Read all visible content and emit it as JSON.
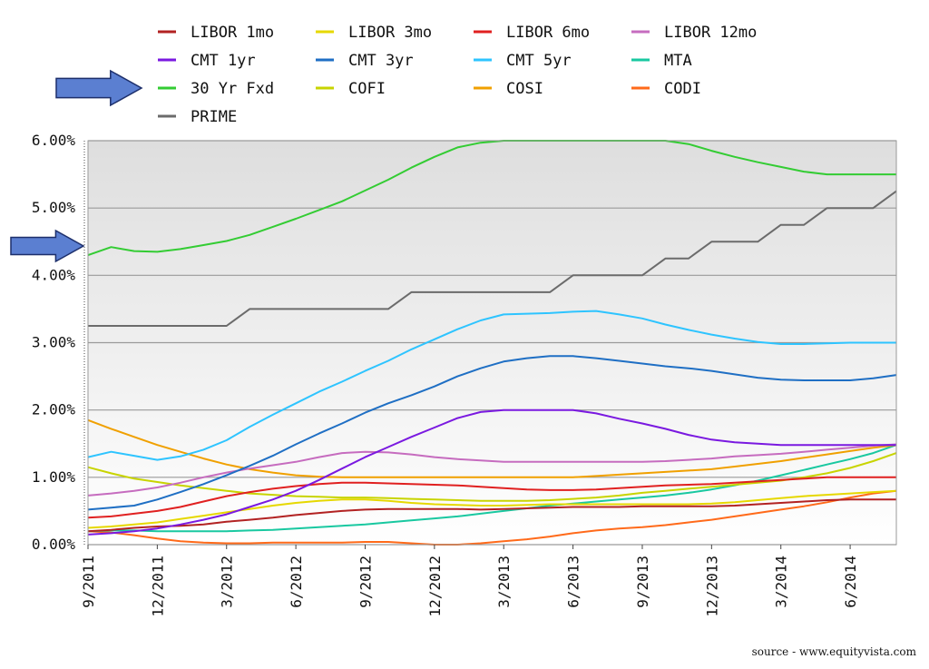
{
  "source": "source - www.equityvista.com",
  "chart_data": {
    "type": "line",
    "title": "",
    "xlabel": "",
    "ylabel": "",
    "ylim": [
      0,
      6
    ],
    "grid": true,
    "legend_placement": "top",
    "y_ticks": [
      "0.00%",
      "1.00%",
      "2.00%",
      "3.00%",
      "4.00%",
      "5.00%",
      "6.00%"
    ],
    "x_ticks": [
      "9/2011",
      "12/2011",
      "3/2012",
      "6/2012",
      "9/2012",
      "12/2012",
      "3/2013",
      "6/2013",
      "9/2013",
      "12/2013",
      "3/2014",
      "6/2014"
    ],
    "x": [
      "9/2011",
      "10/2011",
      "11/2011",
      "12/2011",
      "1/2012",
      "2/2012",
      "3/2012",
      "4/2012",
      "5/2012",
      "6/2012",
      "7/2012",
      "8/2012",
      "9/2012",
      "10/2012",
      "11/2012",
      "12/2012",
      "1/2013",
      "2/2013",
      "3/2013",
      "4/2013",
      "5/2013",
      "6/2013",
      "7/2013",
      "8/2013",
      "9/2013",
      "10/2013",
      "11/2013",
      "12/2013",
      "1/2014",
      "2/2014",
      "3/2014",
      "4/2014",
      "5/2014",
      "6/2014",
      "7/2014",
      "8/2014"
    ],
    "series": [
      {
        "name": "LIBOR 1mo",
        "color": "#b22222",
        "values": [
          0.2,
          0.22,
          0.25,
          0.27,
          0.28,
          0.3,
          0.34,
          0.37,
          0.4,
          0.44,
          0.47,
          0.5,
          0.52,
          0.53,
          0.53,
          0.53,
          0.53,
          0.52,
          0.53,
          0.54,
          0.55,
          0.56,
          0.56,
          0.56,
          0.57,
          0.57,
          0.57,
          0.57,
          0.58,
          0.6,
          0.62,
          0.64,
          0.66,
          0.67,
          0.67,
          0.67
        ]
      },
      {
        "name": "LIBOR 3mo",
        "color": "#e6d800",
        "values": [
          0.25,
          0.27,
          0.3,
          0.33,
          0.38,
          0.43,
          0.48,
          0.53,
          0.58,
          0.62,
          0.65,
          0.67,
          0.67,
          0.65,
          0.62,
          0.6,
          0.59,
          0.58,
          0.58,
          0.59,
          0.6,
          0.6,
          0.6,
          0.6,
          0.6,
          0.6,
          0.6,
          0.61,
          0.63,
          0.66,
          0.69,
          0.72,
          0.74,
          0.76,
          0.78,
          0.8
        ]
      },
      {
        "name": "LIBOR 6mo",
        "color": "#e02020",
        "values": [
          0.4,
          0.42,
          0.46,
          0.5,
          0.56,
          0.64,
          0.72,
          0.78,
          0.83,
          0.87,
          0.9,
          0.92,
          0.92,
          0.91,
          0.9,
          0.89,
          0.88,
          0.86,
          0.84,
          0.82,
          0.81,
          0.81,
          0.82,
          0.84,
          0.86,
          0.88,
          0.89,
          0.9,
          0.92,
          0.94,
          0.96,
          0.98,
          1.0,
          1.0,
          1.0,
          1.0
        ]
      },
      {
        "name": "LIBOR 12mo",
        "color": "#c66cbf",
        "values": [
          0.73,
          0.76,
          0.8,
          0.85,
          0.92,
          1.0,
          1.07,
          1.13,
          1.18,
          1.23,
          1.3,
          1.36,
          1.38,
          1.37,
          1.34,
          1.3,
          1.27,
          1.25,
          1.23,
          1.23,
          1.23,
          1.23,
          1.23,
          1.23,
          1.23,
          1.24,
          1.26,
          1.28,
          1.31,
          1.33,
          1.35,
          1.38,
          1.41,
          1.44,
          1.47,
          1.49
        ]
      },
      {
        "name": "CMT 1yr",
        "color": "#7a19e0",
        "values": [
          0.15,
          0.17,
          0.2,
          0.24,
          0.3,
          0.37,
          0.45,
          0.56,
          0.67,
          0.8,
          0.96,
          1.13,
          1.3,
          1.45,
          1.6,
          1.74,
          1.88,
          1.97,
          2.0,
          2.0,
          2.0,
          2.0,
          1.95,
          1.87,
          1.8,
          1.72,
          1.63,
          1.56,
          1.52,
          1.5,
          1.48,
          1.48,
          1.48,
          1.48,
          1.48,
          1.48
        ]
      },
      {
        "name": "CMT 3yr",
        "color": "#1f6fc4",
        "values": [
          0.52,
          0.55,
          0.58,
          0.67,
          0.78,
          0.9,
          1.03,
          1.17,
          1.32,
          1.49,
          1.65,
          1.8,
          1.96,
          2.1,
          2.22,
          2.35,
          2.5,
          2.62,
          2.72,
          2.77,
          2.8,
          2.8,
          2.77,
          2.73,
          2.69,
          2.65,
          2.62,
          2.58,
          2.53,
          2.48,
          2.45,
          2.44,
          2.44,
          2.44,
          2.47,
          2.52
        ]
      },
      {
        "name": "CMT 5yr",
        "color": "#2ec4ff",
        "values": [
          1.3,
          1.38,
          1.32,
          1.26,
          1.31,
          1.41,
          1.55,
          1.75,
          1.93,
          2.1,
          2.27,
          2.42,
          2.58,
          2.73,
          2.9,
          3.05,
          3.2,
          3.33,
          3.42,
          3.43,
          3.44,
          3.46,
          3.47,
          3.42,
          3.36,
          3.27,
          3.19,
          3.12,
          3.06,
          3.01,
          2.98,
          2.98,
          2.99,
          3.0,
          3.0,
          3.0
        ]
      },
      {
        "name": "MTA",
        "color": "#19c8a0",
        "values": [
          0.2,
          0.21,
          0.21,
          0.2,
          0.2,
          0.2,
          0.2,
          0.21,
          0.22,
          0.24,
          0.26,
          0.28,
          0.3,
          0.33,
          0.36,
          0.39,
          0.42,
          0.46,
          0.5,
          0.54,
          0.58,
          0.61,
          0.64,
          0.67,
          0.7,
          0.73,
          0.77,
          0.82,
          0.88,
          0.95,
          1.03,
          1.11,
          1.19,
          1.27,
          1.36,
          1.48
        ]
      },
      {
        "name": "30 Yr Fxd",
        "color": "#33cc33",
        "values": [
          4.3,
          4.42,
          4.36,
          4.35,
          4.39,
          4.45,
          4.51,
          4.6,
          4.72,
          4.84,
          4.97,
          5.1,
          5.26,
          5.42,
          5.6,
          5.76,
          5.9,
          5.97,
          6.0,
          6.0,
          6.0,
          6.0,
          6.0,
          6.0,
          6.0,
          6.0,
          5.95,
          5.85,
          5.76,
          5.68,
          5.61,
          5.54,
          5.5,
          5.5,
          5.5,
          5.5
        ]
      },
      {
        "name": "COFI",
        "color": "#c8d400",
        "values": [
          1.15,
          1.06,
          0.98,
          0.93,
          0.88,
          0.84,
          0.8,
          0.76,
          0.74,
          0.72,
          0.71,
          0.7,
          0.7,
          0.69,
          0.68,
          0.67,
          0.66,
          0.65,
          0.65,
          0.65,
          0.66,
          0.68,
          0.7,
          0.73,
          0.77,
          0.8,
          0.83,
          0.86,
          0.89,
          0.92,
          0.95,
          1.0,
          1.06,
          1.14,
          1.24,
          1.36
        ]
      },
      {
        "name": "COSI",
        "color": "#f0a000",
        "values": [
          1.85,
          1.72,
          1.6,
          1.48,
          1.38,
          1.28,
          1.19,
          1.12,
          1.07,
          1.03,
          1.01,
          1.0,
          1.0,
          1.0,
          1.0,
          1.0,
          1.0,
          1.0,
          1.0,
          1.0,
          1.0,
          1.0,
          1.02,
          1.04,
          1.06,
          1.08,
          1.1,
          1.12,
          1.16,
          1.2,
          1.24,
          1.29,
          1.34,
          1.39,
          1.44,
          1.48
        ]
      },
      {
        "name": "CODI",
        "color": "#ff6a1a",
        "values": [
          0.2,
          0.18,
          0.14,
          0.09,
          0.05,
          0.03,
          0.02,
          0.02,
          0.03,
          0.03,
          0.03,
          0.03,
          0.04,
          0.04,
          0.02,
          0.0,
          0.0,
          0.02,
          0.05,
          0.08,
          0.12,
          0.17,
          0.21,
          0.24,
          0.26,
          0.29,
          0.33,
          0.37,
          0.42,
          0.47,
          0.52,
          0.57,
          0.63,
          0.7,
          0.76,
          0.8
        ]
      },
      {
        "name": "PRIME",
        "color": "#6b6b6b",
        "values": [
          3.25,
          3.25,
          3.25,
          3.25,
          3.25,
          3.25,
          3.25,
          3.5,
          3.5,
          3.5,
          3.5,
          3.5,
          3.5,
          3.5,
          3.75,
          3.75,
          3.75,
          3.75,
          3.75,
          3.75,
          3.75,
          4.0,
          4.0,
          4.0,
          4.0,
          4.25,
          4.25,
          4.5,
          4.5,
          4.5,
          4.75,
          4.75,
          5.0,
          5.0,
          5.0,
          5.25
        ]
      }
    ]
  }
}
